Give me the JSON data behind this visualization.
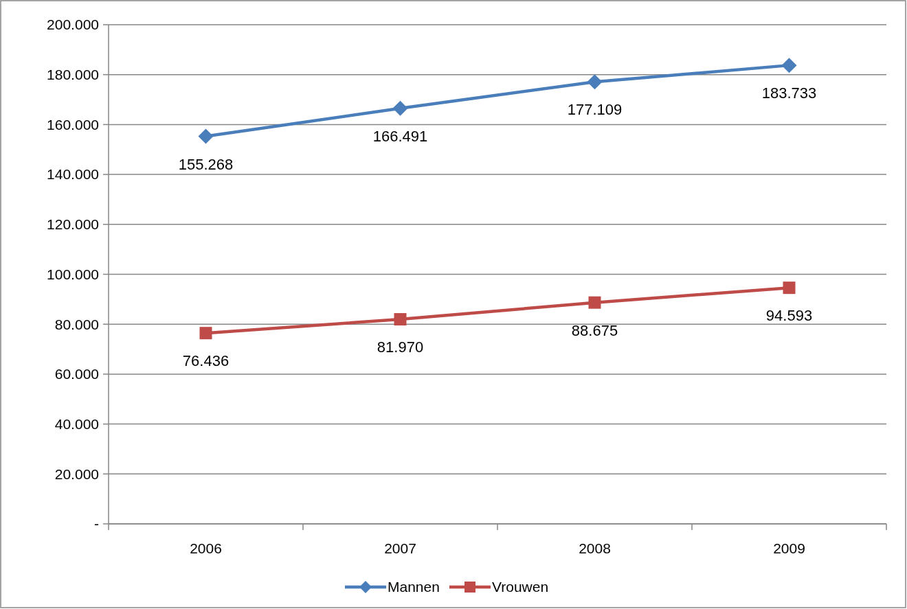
{
  "chart_data": {
    "type": "line",
    "categories": [
      "2006",
      "2007",
      "2008",
      "2009"
    ],
    "series": [
      {
        "name": "Mannen",
        "color": "#4a7ebb",
        "marker": "diamond",
        "values": [
          155268,
          166491,
          177109,
          183733
        ],
        "value_labels": [
          "155.268",
          "166.491",
          "177.109",
          "183.733"
        ]
      },
      {
        "name": "Vrouwen",
        "color": "#be4b48",
        "marker": "square",
        "values": [
          76436,
          81970,
          88675,
          94593
        ],
        "value_labels": [
          "76.436",
          "81.970",
          "88.675",
          "94.593"
        ]
      }
    ],
    "ylim": [
      0,
      200000
    ],
    "yticks": [
      {
        "value": 0,
        "label": "-"
      },
      {
        "value": 20000,
        "label": "20.000"
      },
      {
        "value": 40000,
        "label": "40.000"
      },
      {
        "value": 60000,
        "label": "60.000"
      },
      {
        "value": 80000,
        "label": "80.000"
      },
      {
        "value": 100000,
        "label": "100.000"
      },
      {
        "value": 120000,
        "label": "120.000"
      },
      {
        "value": 140000,
        "label": "140.000"
      },
      {
        "value": 160000,
        "label": "160.000"
      },
      {
        "value": 180000,
        "label": "180.000"
      },
      {
        "value": 200000,
        "label": "200.000"
      }
    ],
    "grid": "y",
    "legend": "bottom"
  }
}
